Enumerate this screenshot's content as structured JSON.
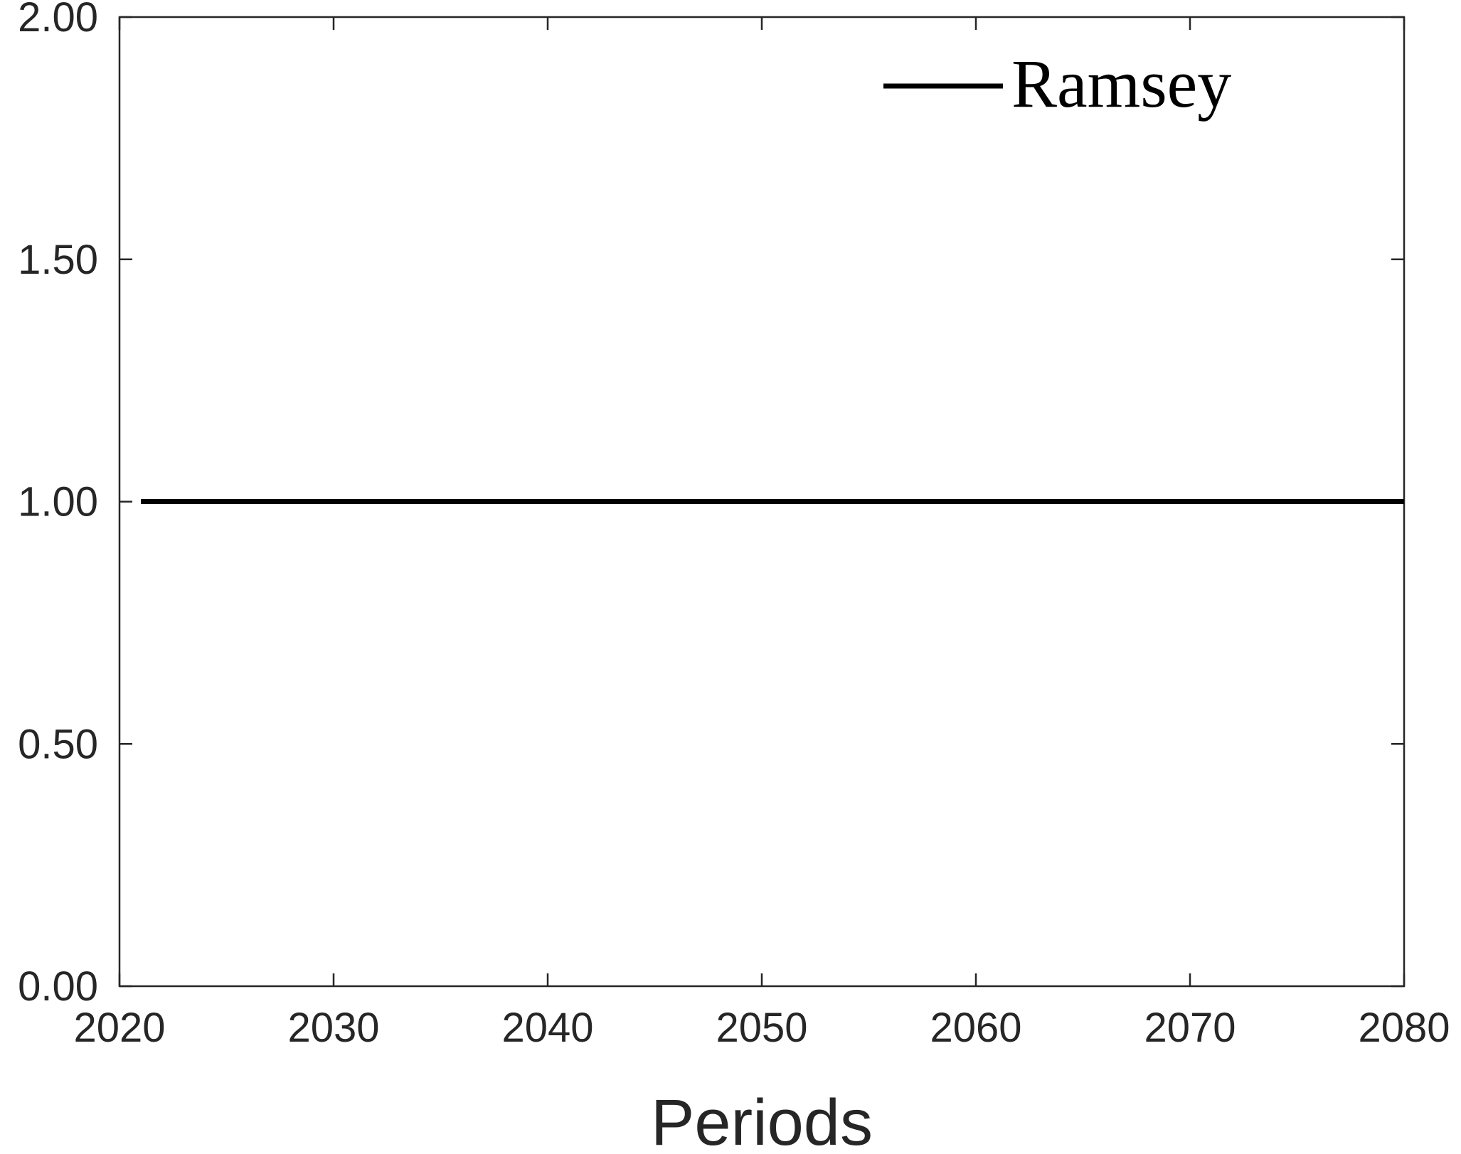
{
  "chart_data": {
    "type": "line",
    "title": "",
    "xlabel": "Periods",
    "ylabel": "",
    "xlim": [
      2020,
      2080
    ],
    "ylim": [
      0,
      2
    ],
    "xticks": [
      2020,
      2030,
      2040,
      2050,
      2060,
      2070,
      2080
    ],
    "xtick_labels": [
      "2020",
      "2030",
      "2040",
      "2050",
      "2060",
      "2070",
      "2080"
    ],
    "yticks": [
      0,
      0.5,
      1,
      1.5,
      2
    ],
    "ytick_labels": [
      "0.00",
      "0.50",
      "1.00",
      "1.50",
      "2.00"
    ],
    "grid": false,
    "legend_position": "top-right",
    "series": [
      {
        "name": "Ramsey",
        "color": "#000000",
        "x": [
          2021,
          2080
        ],
        "y": [
          1.0,
          1.0
        ]
      }
    ]
  }
}
